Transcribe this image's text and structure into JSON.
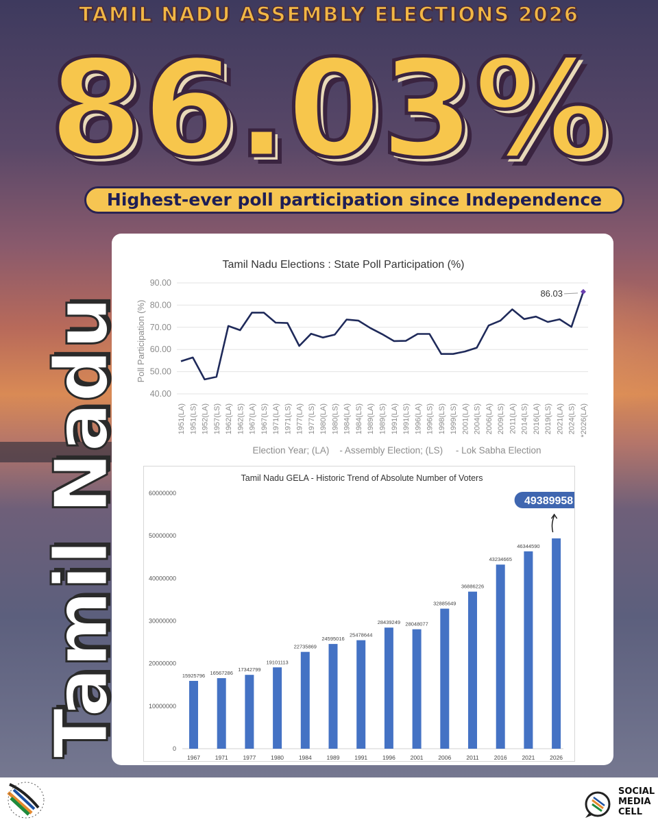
{
  "header": {
    "title": "Tamil Nadu Assembly Elections 2026"
  },
  "headline": {
    "value": "86.03%"
  },
  "tagline": "Highest-ever poll participation since Independence",
  "vertical_label": "Tamil Nadu",
  "footer": {
    "social_media_cell": [
      "SOCIAL",
      "MEDIA",
      "CELL"
    ]
  },
  "colors": {
    "accent": "#f6c552",
    "line": "#1f2a5a",
    "bar": "#4472c4",
    "highlight_point": "#6a3fb0"
  },
  "chart_data": [
    {
      "type": "line",
      "title": "Tamil Nadu Elections : State Poll Participation (%)",
      "ylabel": "Poll Participation (%)",
      "xlabel": "Election Year; (LA)    - Assembly Election; (LS)     - Lok Sabha Election",
      "ylim": [
        40,
        90
      ],
      "yticks": [
        "90.00",
        "80.00",
        "70.00",
        "60.00",
        "50.00",
        "40.00"
      ],
      "grid": true,
      "categories": [
        "1951(LA)",
        "1951(LS)",
        "1952(LA)",
        "1957(LS)",
        "1962(LA)",
        "1962(LS)",
        "1967(LA)",
        "1967(LS)",
        "1971(LA)",
        "1971(LS)",
        "1977(LA)",
        "1977(LS)",
        "1980(LA)",
        "1980(LS)",
        "1984(LA)",
        "1984(LS)",
        "1989(LA)",
        "1989(LS)",
        "1991(LA)",
        "1991(LS)",
        "1996(LA)",
        "1996(LS)",
        "1998(LS)",
        "1999(LS)",
        "2001(LA)",
        "2004(LS)",
        "2006(LA)",
        "2009(LS)",
        "2011(LA)",
        "2014(LS)",
        "2016(LA)",
        "2019(LS)",
        "2021(LA)",
        "2024(LS)",
        "*2026(LA)"
      ],
      "values": [
        54.7,
        56.4,
        46.5,
        47.7,
        70.6,
        68.7,
        76.6,
        76.6,
        72.1,
        71.9,
        61.6,
        67.1,
        65.4,
        66.7,
        73.5,
        73.0,
        69.7,
        66.9,
        63.8,
        63.9,
        67.0,
        67.0,
        58.0,
        58.0,
        59.1,
        60.8,
        70.8,
        73.0,
        78.1,
        73.7,
        74.8,
        72.4,
        73.6,
        70.2,
        86.03
      ],
      "annotation": "86.03"
    },
    {
      "type": "bar",
      "title": "Tamil Nadu GELA - Historic Trend of Absolute Number of Voters",
      "ylim": [
        0,
        60000000
      ],
      "yticks": [
        "60000000",
        "50000000",
        "40000000",
        "30000000",
        "20000000",
        "10000000",
        "0"
      ],
      "categories": [
        "1967",
        "1971",
        "1977",
        "1980",
        "1984",
        "1989",
        "1991",
        "1996",
        "2001",
        "2006",
        "2011",
        "2016",
        "2021",
        "2026"
      ],
      "values": [
        15925796,
        16567286,
        17342799,
        19101113,
        22735869,
        24595016,
        25478644,
        28439249,
        28048077,
        32885649,
        36886226,
        43234665,
        46344590,
        49389958
      ],
      "value_labels": [
        "15925796",
        "16567286",
        "17342799",
        "19101113",
        "22735869",
        "24595016",
        "25478644",
        "28439249",
        "28048077",
        "32885649",
        "36886226",
        "43234665",
        "46344590",
        ""
      ],
      "callout": "49389958"
    }
  ]
}
